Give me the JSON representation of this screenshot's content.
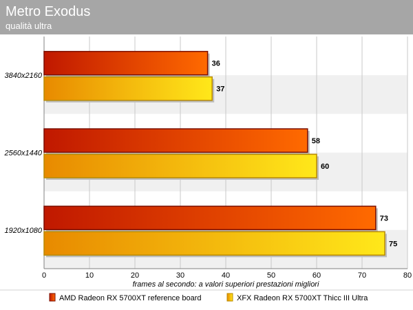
{
  "chart_data": {
    "type": "bar",
    "orientation": "horizontal",
    "title": "Metro Exodus",
    "subtitle": "qualità ultra",
    "xlabel": "frames al secondo: a valori superiori prestazioni migliori",
    "ylabel": "",
    "categories": [
      "3840x2160",
      "2560x1440",
      "1920x1080"
    ],
    "series": [
      {
        "name": "AMD Radeon RX 5700XT reference board",
        "values": [
          36,
          58,
          73
        ]
      },
      {
        "name": "XFX Radeon RX 5700XT Thicc III Ultra",
        "values": [
          37,
          60,
          75
        ]
      }
    ],
    "xlim": [
      0,
      80
    ],
    "xticks": [
      0,
      10,
      20,
      30,
      40,
      50,
      60,
      70,
      80
    ],
    "grid": true,
    "legend_position": "bottom",
    "data_labels": true,
    "colors": {
      "series1_dark": "#c01800",
      "series1_light": "#ff6a00",
      "series1_border": "#7a0e00",
      "series2_dark": "#e88a00",
      "series2_light": "#ffe81a",
      "series2_border": "#b88a00",
      "title_band": "#a6a6a6",
      "band_alt": "#f0f0f0",
      "grid": "#c8c8c8"
    }
  }
}
